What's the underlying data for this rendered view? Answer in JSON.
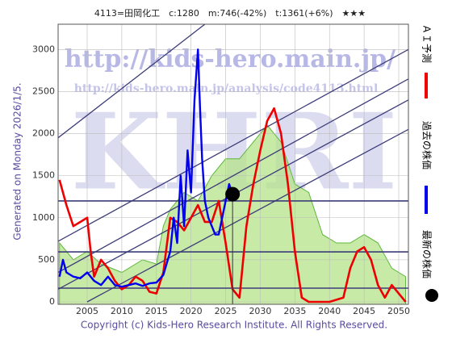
{
  "chart_data": {
    "type": "line",
    "title": "4113=田岡化工　c:1280　m:746(-42%)　t:1361(+6%)　★★★",
    "side_label": "Generated on Monday 2026/1/5.",
    "copyright": "Copyright (c) Kids-Hero Research Institute. All Rights Reserved.",
    "watermarks": [
      "http://kids-hero.main.jp/",
      "http://kids-hero.main.jp/analysis/code4113.html",
      "KHRI"
    ],
    "xlim": [
      2000.8,
      2051.4
    ],
    "ylim": [
      0,
      3300
    ],
    "xticks": [
      2005,
      2010,
      2015,
      2020,
      2025,
      2030,
      2035,
      2040,
      2045,
      2050
    ],
    "yticks": [
      0,
      500,
      1000,
      1500,
      2000,
      2500,
      3000
    ],
    "grid": true,
    "band": {
      "color": "#b5e38a",
      "x": [
        2001,
        2003,
        2005,
        2007,
        2010,
        2013,
        2015,
        2016,
        2017,
        2019,
        2021,
        2023,
        2025,
        2027,
        2029,
        2031,
        2033,
        2035,
        2037,
        2039,
        2041,
        2043,
        2045,
        2047,
        2049,
        2051
      ],
      "values": [
        700,
        500,
        600,
        450,
        350,
        500,
        450,
        900,
        1100,
        1300,
        1200,
        1500,
        1700,
        1700,
        1900,
        2100,
        1900,
        1400,
        1300,
        800,
        700,
        700,
        800,
        700,
        400,
        300
      ]
    },
    "hlines": [
      1200,
      594,
      163
    ],
    "trend_lines": [
      [
        2000.8,
        1950,
        2022,
        3300
      ],
      [
        2000.8,
        720,
        2051.4,
        3000
      ],
      [
        2000.8,
        350,
        2051.4,
        2650
      ],
      [
        2000.8,
        150,
        2051.4,
        2400
      ],
      [
        2005,
        0,
        2051.4,
        2050
      ]
    ],
    "series": [
      {
        "name": "ＡＩ予測",
        "color": "#ee0000",
        "x": [
          2001,
          2002,
          2003,
          2004,
          2005,
          2005.5,
          2006,
          2007,
          2008,
          2009,
          2010,
          2011,
          2012,
          2013,
          2014,
          2015,
          2016,
          2017,
          2018,
          2019,
          2020,
          2021,
          2022,
          2023,
          2024,
          2025,
          2026,
          2027,
          2028,
          2029,
          2030,
          2031,
          2032,
          2033,
          2034,
          2035,
          2036,
          2037,
          2038,
          2040,
          2042,
          2043,
          2044,
          2045,
          2046,
          2047,
          2048,
          2049,
          2050,
          2051
        ],
        "values": [
          1450,
          1150,
          900,
          950,
          1000,
          600,
          300,
          500,
          400,
          250,
          150,
          200,
          300,
          250,
          120,
          100,
          350,
          1000,
          950,
          850,
          1000,
          1150,
          950,
          950,
          1200,
          700,
          150,
          50,
          900,
          1400,
          1800,
          2150,
          2300,
          2000,
          1400,
          600,
          50,
          0,
          0,
          0,
          50,
          400,
          600,
          650,
          500,
          200,
          50,
          200,
          100,
          0
        ]
      },
      {
        "name": "過去の株価",
        "color": "#0000ee",
        "x": [
          2001,
          2001.5,
          2002,
          2003,
          2004,
          2005,
          2006,
          2007,
          2008,
          2009,
          2010,
          2011,
          2012,
          2013,
          2014,
          2015,
          2016,
          2017,
          2017.5,
          2018,
          2018.5,
          2019,
          2019.5,
          2020,
          2020.5,
          2021,
          2021.3,
          2021.6,
          2022,
          2022.5,
          2023,
          2023.5,
          2024,
          2024.5,
          2025,
          2025.5,
          2026
        ],
        "values": [
          300,
          500,
          350,
          300,
          280,
          350,
          250,
          200,
          300,
          200,
          180,
          200,
          220,
          190,
          220,
          230,
          320,
          600,
          1000,
          700,
          1500,
          900,
          1800,
          1300,
          2400,
          3000,
          2300,
          1700,
          1200,
          1000,
          900,
          800,
          800,
          1000,
          1200,
          1400,
          1280
        ]
      }
    ],
    "latest": {
      "name": "最新の株価",
      "x": 2026,
      "value": 1280
    }
  }
}
